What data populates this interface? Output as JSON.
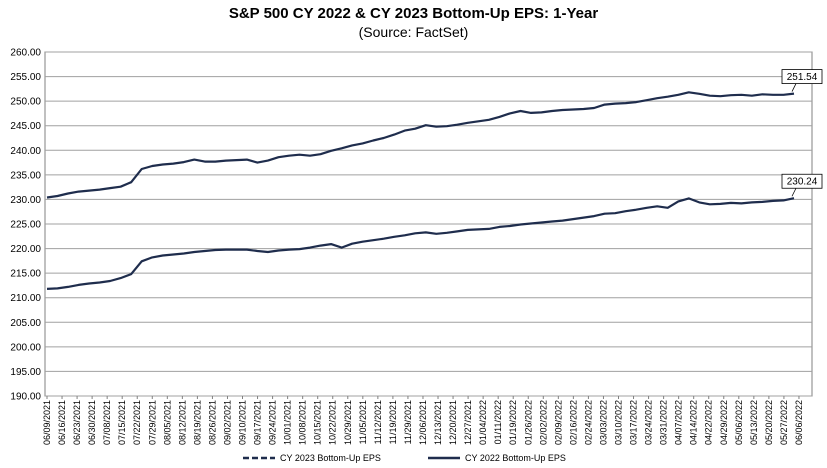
{
  "chart_data": {
    "type": "line",
    "title": "S&P 500 CY 2022 & CY 2023 Bottom-Up  EPS: 1-Year",
    "subtitle": "(Source:  FactSet)",
    "xlabel": "",
    "ylabel": "",
    "ylim": [
      190,
      260
    ],
    "y_ticks": [
      "190.00",
      "195.00",
      "200.00",
      "205.00",
      "210.00",
      "215.00",
      "220.00",
      "225.00",
      "230.00",
      "235.00",
      "240.00",
      "245.00",
      "250.00",
      "255.00",
      "260.00"
    ],
    "x_ticks": [
      "06/09/2021",
      "06/16/2021",
      "06/23/2021",
      "06/30/2021",
      "07/08/2021",
      "07/15/2021",
      "07/22/2021",
      "07/29/2021",
      "08/05/2021",
      "08/12/2021",
      "08/19/2021",
      "08/26/2021",
      "09/02/2021",
      "09/10/2021",
      "09/17/2021",
      "09/24/2021",
      "10/01/2021",
      "10/08/2021",
      "10/15/2021",
      "10/22/2021",
      "10/29/2021",
      "11/05/2021",
      "11/12/2021",
      "11/19/2021",
      "11/29/2021",
      "12/06/2021",
      "12/13/2021",
      "12/20/2021",
      "12/27/2021",
      "01/04/2022",
      "01/11/2022",
      "01/19/2022",
      "01/26/2022",
      "02/02/2022",
      "02/09/2022",
      "02/16/2022",
      "02/24/2022",
      "03/03/2022",
      "03/10/2022",
      "03/17/2022",
      "03/24/2022",
      "03/31/2022",
      "04/07/2022",
      "04/14/2022",
      "04/22/2022",
      "04/29/2022",
      "05/06/2022",
      "05/13/2022",
      "05/20/2022",
      "05/27/2022",
      "06/06/2022"
    ],
    "grid": true,
    "legend_position": "bottom",
    "series": [
      {
        "name": "CY 2023 Bottom-Up EPS",
        "color": "#1f2d4d",
        "dash": "dashed",
        "values": [
          230.4,
          230.7,
          231.2,
          231.6,
          231.8,
          232.0,
          232.3,
          232.6,
          233.5,
          236.2,
          236.8,
          237.1,
          237.3,
          237.6,
          238.1,
          237.7,
          237.7,
          237.9,
          238.0,
          238.1,
          237.5,
          237.9,
          238.6,
          238.9,
          239.1,
          238.9,
          239.2,
          239.9,
          240.4,
          241.0,
          241.4,
          242.0,
          242.5,
          243.2,
          244.0,
          244.4,
          245.1,
          244.8,
          244.9,
          245.2,
          245.6,
          245.9,
          246.2,
          246.8,
          247.5,
          248.0,
          247.6,
          247.7,
          248.0,
          248.2,
          248.3,
          248.4,
          248.6,
          249.3,
          249.5,
          249.6,
          249.8,
          250.2,
          250.6,
          250.9,
          251.3,
          251.8,
          251.5,
          251.1,
          251.0,
          251.2,
          251.3,
          251.1,
          251.4,
          251.3,
          251.3,
          251.54
        ],
        "end_label": "251.54"
      },
      {
        "name": "CY 2022 Bottom-Up EPS",
        "color": "#1f2d4d",
        "dash": "solid",
        "values": [
          211.8,
          211.9,
          212.2,
          212.6,
          212.9,
          213.1,
          213.4,
          214.0,
          214.8,
          217.4,
          218.2,
          218.6,
          218.8,
          219.0,
          219.3,
          219.5,
          219.7,
          219.8,
          219.8,
          219.8,
          219.5,
          219.3,
          219.6,
          219.8,
          219.9,
          220.2,
          220.6,
          220.9,
          220.2,
          221.0,
          221.4,
          221.7,
          222.0,
          222.4,
          222.7,
          223.1,
          223.3,
          223.0,
          223.2,
          223.5,
          223.8,
          223.9,
          224.0,
          224.4,
          224.6,
          224.9,
          225.1,
          225.3,
          225.5,
          225.7,
          226.0,
          226.3,
          226.6,
          227.1,
          227.2,
          227.6,
          227.9,
          228.3,
          228.6,
          228.3,
          229.6,
          230.2,
          229.4,
          229.0,
          229.1,
          229.3,
          229.2,
          229.4,
          229.5,
          229.7,
          229.8,
          230.24
        ],
        "end_label": "230.24"
      }
    ]
  }
}
